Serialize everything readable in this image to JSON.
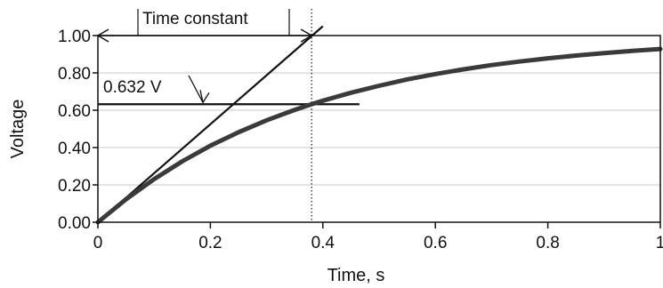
{
  "chart_data": {
    "type": "line",
    "title": "",
    "xlabel": "Time, s",
    "ylabel": "Voltage",
    "xlim": [
      0,
      1
    ],
    "ylim": [
      0,
      1
    ],
    "x_ticks": [
      "0",
      "0.2",
      "0.4",
      "0.6",
      "0.8",
      "1"
    ],
    "y_ticks": [
      "0.00",
      "0.20",
      "0.40",
      "0.60",
      "0.80",
      "1.00"
    ],
    "grid": "horizontal",
    "legend": "none",
    "series": [
      {
        "type": "curve",
        "time_constant": 0.38,
        "x": [
          0,
          0.05,
          0.1,
          0.15,
          0.2,
          0.25,
          0.3,
          0.35,
          0.38,
          0.4,
          0.45,
          0.5,
          0.55,
          0.6,
          0.65,
          0.7,
          0.75,
          0.8,
          0.85,
          0.9,
          0.95,
          1.0
        ],
        "y": [
          0,
          0.123,
          0.231,
          0.326,
          0.41,
          0.482,
          0.546,
          0.602,
          0.632,
          0.651,
          0.694,
          0.731,
          0.765,
          0.794,
          0.819,
          0.842,
          0.861,
          0.878,
          0.893,
          0.906,
          0.918,
          0.928
        ]
      },
      {
        "type": "tangent",
        "x": [
          0,
          0.4
        ],
        "y": [
          0,
          1.05
        ]
      }
    ],
    "annotations": {
      "time_constant_label": "Time constant",
      "level_label": "0.632 V",
      "level_value": 0.632,
      "level_line_x": [
        0,
        0.465
      ],
      "time_constant_x": 0.38
    }
  },
  "colors": {
    "curve": "#3a3a3a",
    "lines": "#111111",
    "grid": "#c8c8c8"
  }
}
